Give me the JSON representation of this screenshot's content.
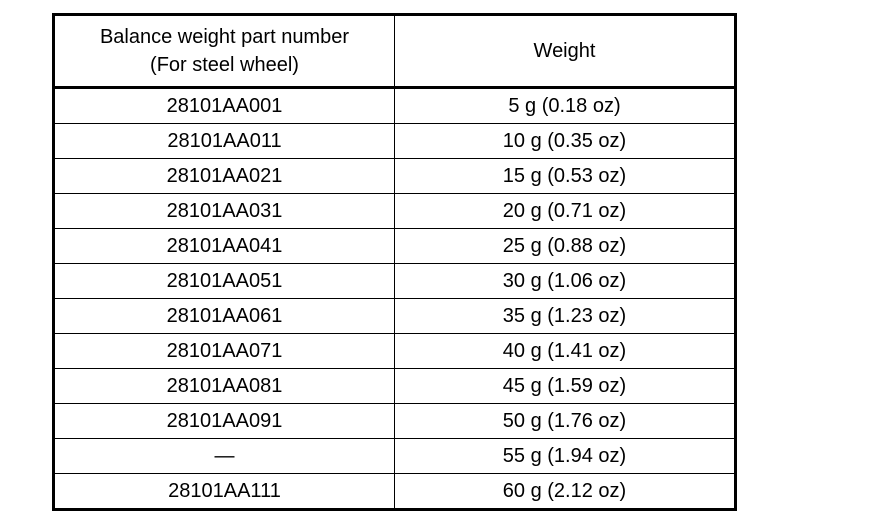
{
  "table": {
    "header": [
      [
        "Balance weight part number",
        "(For steel wheel)"
      ],
      "Weight"
    ],
    "rows": [
      [
        "28101AA001",
        "5 g (0.18 oz)"
      ],
      [
        "28101AA011",
        "10 g (0.35 oz)"
      ],
      [
        "28101AA021",
        "15 g (0.53 oz)"
      ],
      [
        "28101AA031",
        "20 g (0.71 oz)"
      ],
      [
        "28101AA041",
        "25 g (0.88 oz)"
      ],
      [
        "28101AA051",
        "30 g (1.06 oz)"
      ],
      [
        "28101AA061",
        "35 g (1.23 oz)"
      ],
      [
        "28101AA071",
        "40 g (1.41 oz)"
      ],
      [
        "28101AA081",
        "45 g (1.59 oz)"
      ],
      [
        "28101AA091",
        "50 g (1.76 oz)"
      ],
      [
        "—",
        "55 g (1.94 oz)"
      ],
      [
        "28101AA111",
        "60 g (2.12 oz)"
      ]
    ]
  }
}
